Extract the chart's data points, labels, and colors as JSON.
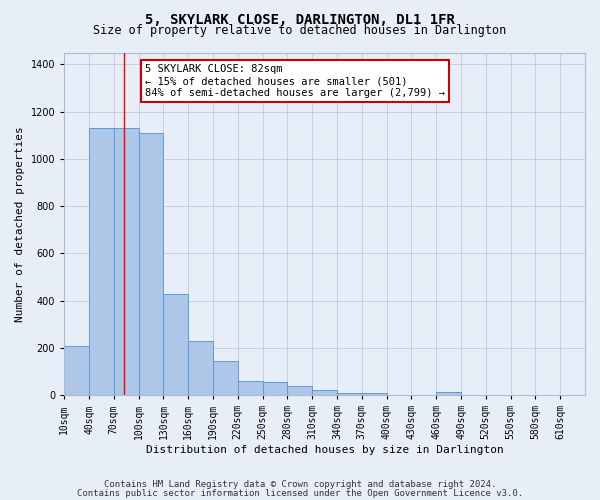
{
  "title": "5, SKYLARK CLOSE, DARLINGTON, DL1 1FR",
  "subtitle": "Size of property relative to detached houses in Darlington",
  "xlabel": "Distribution of detached houses by size in Darlington",
  "ylabel": "Number of detached properties",
  "categories": [
    "10sqm",
    "40sqm",
    "70sqm",
    "100sqm",
    "130sqm",
    "160sqm",
    "190sqm",
    "220sqm",
    "250sqm",
    "280sqm",
    "310sqm",
    "340sqm",
    "370sqm",
    "400sqm",
    "430sqm",
    "460sqm",
    "490sqm",
    "520sqm",
    "550sqm",
    "580sqm",
    "610sqm"
  ],
  "bin_starts": [
    10,
    40,
    70,
    100,
    130,
    160,
    190,
    220,
    250,
    280,
    310,
    340,
    370,
    400,
    430,
    460,
    490,
    520,
    550,
    580,
    610
  ],
  "bin_width": 30,
  "values": [
    210,
    1130,
    1130,
    1110,
    430,
    230,
    145,
    60,
    55,
    37,
    20,
    10,
    10,
    0,
    0,
    15,
    0,
    0,
    0,
    0,
    0
  ],
  "bar_color": "#aec6e8",
  "bar_edge_color": "#5b9bd5",
  "red_line_x": 82,
  "annotation_line1": "5 SKYLARK CLOSE: 82sqm",
  "annotation_line2": "← 15% of detached houses are smaller (501)",
  "annotation_line3": "84% of semi-detached houses are larger (2,799) →",
  "annotation_box_color": "#ffffff",
  "annotation_box_edge": "#cc0000",
  "ylim": [
    0,
    1450
  ],
  "yticks": [
    0,
    200,
    400,
    600,
    800,
    1000,
    1200,
    1400
  ],
  "xlim_left": 10,
  "xlim_right": 640,
  "grid_color": "#c0c8e0",
  "bg_color": "#e8eef8",
  "title_fontsize": 10,
  "subtitle_fontsize": 8.5,
  "tick_fontsize": 7,
  "ylabel_fontsize": 8,
  "xlabel_fontsize": 8,
  "footer1": "Contains HM Land Registry data © Crown copyright and database right 2024.",
  "footer2": "Contains public sector information licensed under the Open Government Licence v3.0.",
  "footer_fontsize": 6.5
}
